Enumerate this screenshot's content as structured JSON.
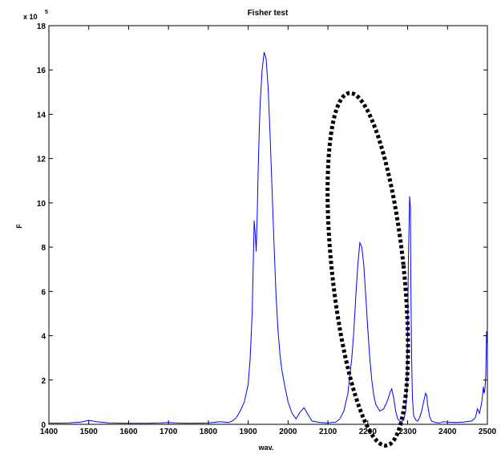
{
  "chart_data": {
    "type": "line",
    "title": "Fisher test",
    "xlabel": "wav.",
    "ylabel": "F",
    "xlim": [
      1400,
      2500
    ],
    "ylim": [
      0,
      18
    ],
    "y_multiplier_base": "x 10",
    "y_multiplier_exp": "5",
    "xticks": [
      1400,
      1500,
      1600,
      1700,
      1800,
      1900,
      2000,
      2100,
      2200,
      2300,
      2400,
      2500
    ],
    "yticks": [
      0,
      2,
      4,
      6,
      8,
      10,
      12,
      14,
      16,
      18
    ],
    "grid": false,
    "line_color": "#0000ff",
    "annotation": {
      "shape": "dotted-ellipse",
      "color": "#000000",
      "x_center": 2200,
      "y_center": 7,
      "x_radius": 90,
      "y_radius": 8
    },
    "series": [
      {
        "x": [
          1400,
          1450,
          1480,
          1500,
          1520,
          1550,
          1600,
          1650,
          1680,
          1700,
          1720,
          1750,
          1800,
          1830,
          1850,
          1860,
          1870,
          1880,
          1890,
          1900,
          1905,
          1910,
          1915,
          1918,
          1920,
          1922,
          1925,
          1928,
          1930,
          1935,
          1940,
          1945,
          1950,
          1955,
          1960,
          1965,
          1970,
          1975,
          1980,
          1985,
          1990,
          2000,
          2010,
          2020,
          2030,
          2040,
          2050,
          2060,
          2080,
          2100,
          2120,
          2130,
          2140,
          2150,
          2160,
          2165,
          2170,
          2175,
          2180,
          2185,
          2190,
          2195,
          2200,
          2205,
          2210,
          2215,
          2220,
          2230,
          2240,
          2250,
          2255,
          2260,
          2265,
          2270,
          2275,
          2280,
          2285,
          2290,
          2295,
          2298,
          2300,
          2302,
          2305,
          2307,
          2308,
          2310,
          2312,
          2315,
          2320,
          2325,
          2330,
          2335,
          2340,
          2345,
          2348,
          2350,
          2355,
          2360,
          2370,
          2380,
          2390,
          2400,
          2420,
          2440,
          2460,
          2470,
          2475,
          2480,
          2485,
          2488,
          2490,
          2492,
          2494,
          2496,
          2498,
          2500
        ],
        "y": [
          0.05,
          0.06,
          0.1,
          0.18,
          0.12,
          0.06,
          0.05,
          0.05,
          0.06,
          0.08,
          0.06,
          0.05,
          0.06,
          0.12,
          0.08,
          0.15,
          0.3,
          0.6,
          1.0,
          1.8,
          3.0,
          5.0,
          9.2,
          8.5,
          7.8,
          9.0,
          11.5,
          13.5,
          14.5,
          16.0,
          16.8,
          16.5,
          15.2,
          13.0,
          10.5,
          8.0,
          5.8,
          4.2,
          3.1,
          2.4,
          1.9,
          1.0,
          0.5,
          0.25,
          0.55,
          0.75,
          0.45,
          0.15,
          0.08,
          0.06,
          0.1,
          0.25,
          0.6,
          1.4,
          3.0,
          4.2,
          5.8,
          7.2,
          8.2,
          8.0,
          7.2,
          5.8,
          4.3,
          3.0,
          2.0,
          1.3,
          0.9,
          0.6,
          0.7,
          1.1,
          1.4,
          1.6,
          1.2,
          0.6,
          0.25,
          0.15,
          0.12,
          0.2,
          0.6,
          1.5,
          4.0,
          7.5,
          10.3,
          9.8,
          6.5,
          3.0,
          1.2,
          0.4,
          0.2,
          0.15,
          0.3,
          0.6,
          1.0,
          1.4,
          1.3,
          0.9,
          0.35,
          0.15,
          0.08,
          0.06,
          0.12,
          0.1,
          0.08,
          0.1,
          0.15,
          0.3,
          0.7,
          0.5,
          0.9,
          1.3,
          1.7,
          1.4,
          1.6,
          2.2,
          4.2,
          3.6
        ]
      }
    ]
  }
}
